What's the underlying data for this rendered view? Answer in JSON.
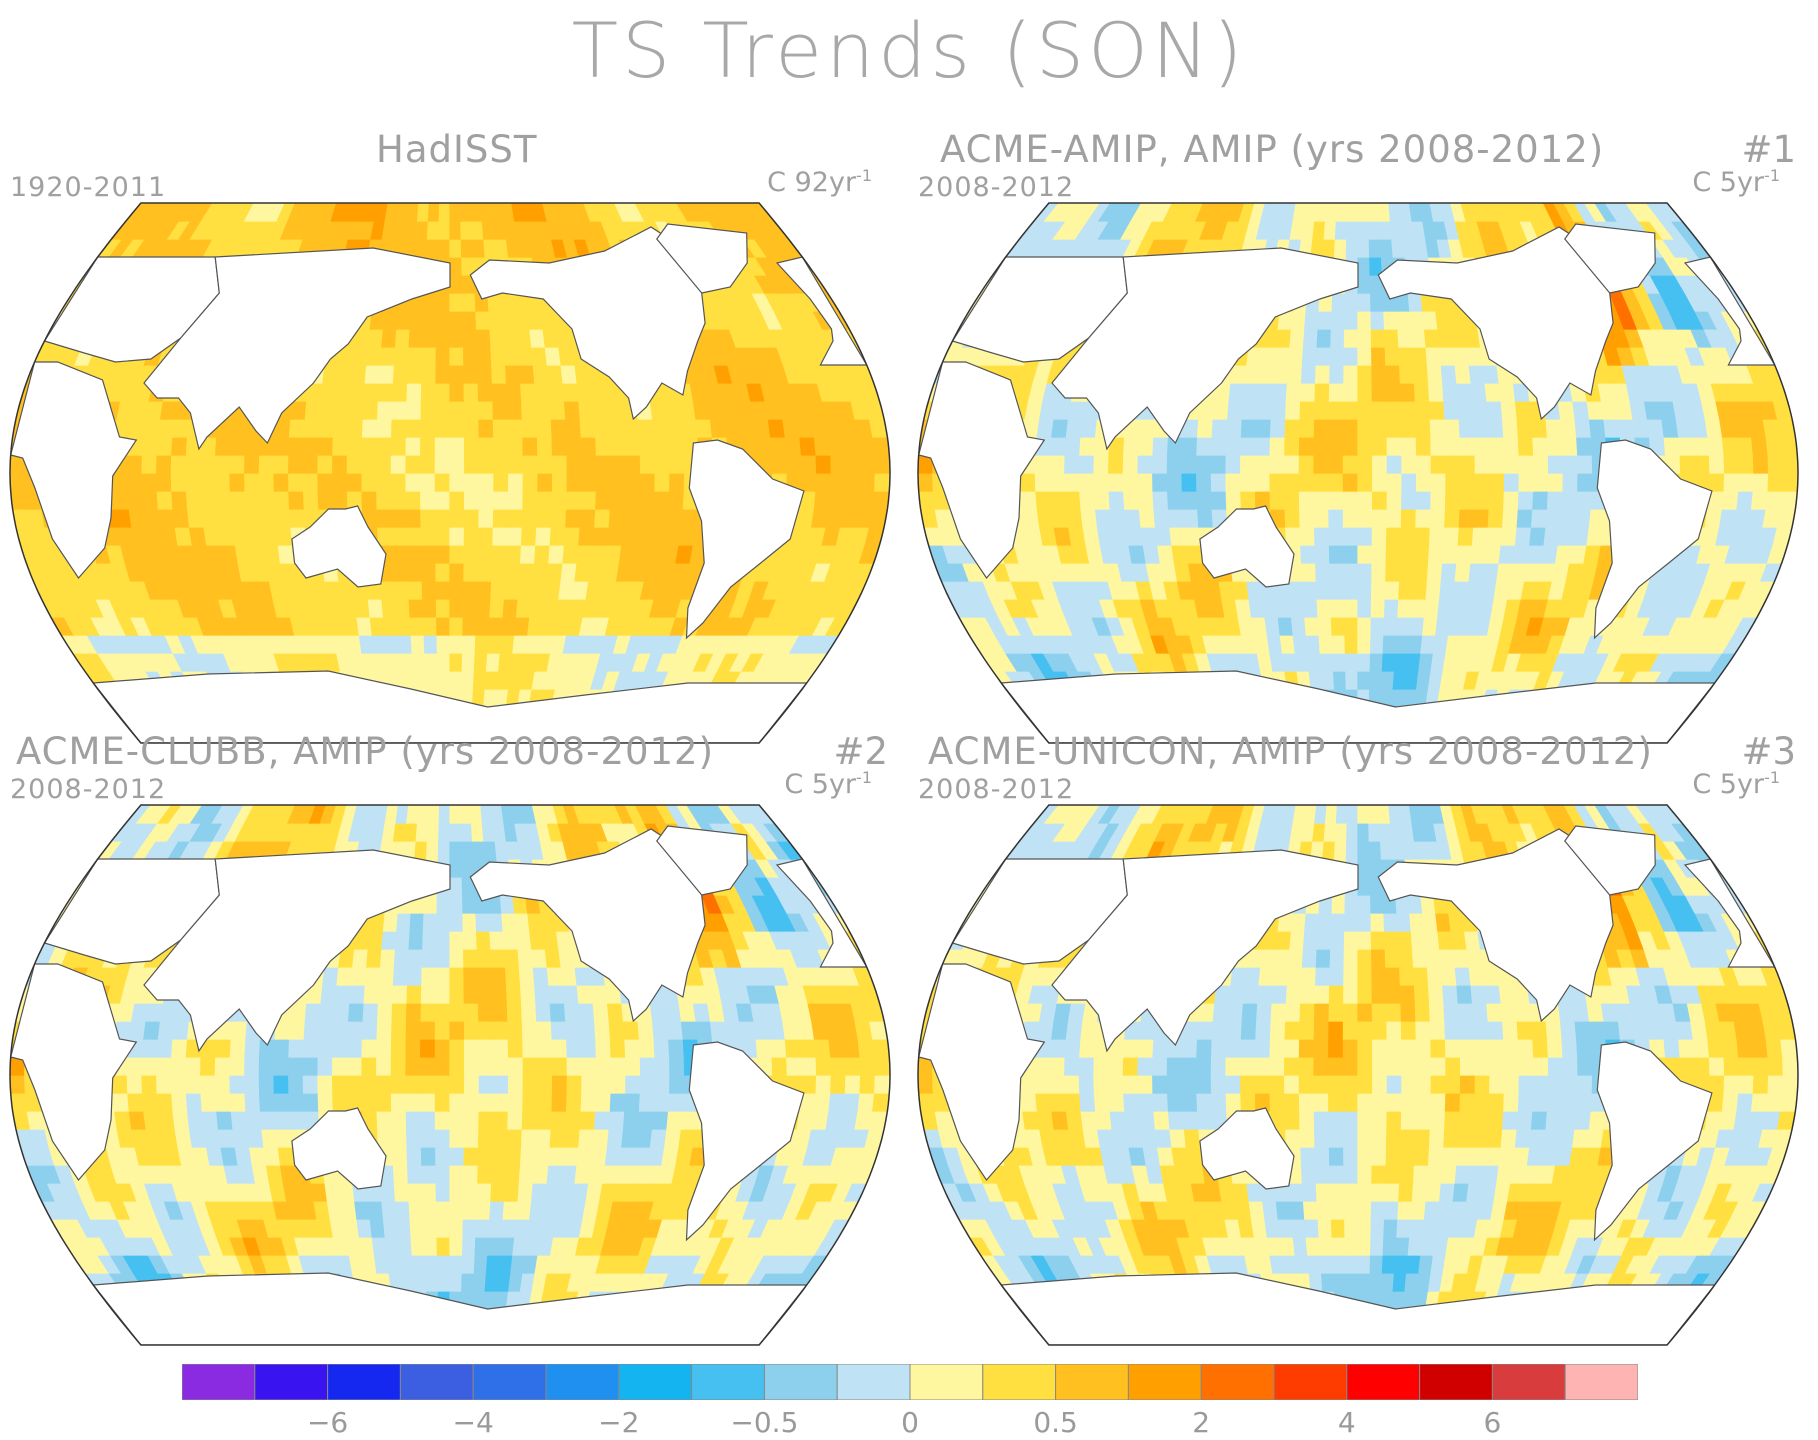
{
  "title": "TS Trends (SON)",
  "chart_data": {
    "type": "heatmap",
    "title": "TS Trends (SON)",
    "variable": "TS",
    "season": "SON",
    "panels": [
      {
        "id": "hadisst",
        "title": "HadISST",
        "period": "1920-2011",
        "units": "C 92yr",
        "units_exp": "-1",
        "number": "",
        "scheme": "warm"
      },
      {
        "id": "amip1",
        "title": "ACME-AMIP, AMIP (yrs 2008-2012)",
        "period": "2008-2012",
        "units": "C 5yr",
        "units_exp": "-1",
        "number": "#1",
        "scheme": "mixed"
      },
      {
        "id": "clubb2",
        "title": "ACME-CLUBB, AMIP (yrs 2008-2012)",
        "period": "2008-2012",
        "units": "C 5yr",
        "units_exp": "-1",
        "number": "#2",
        "scheme": "mixed"
      },
      {
        "id": "unicon3",
        "title": "ACME-UNICON, AMIP (yrs 2008-2012)",
        "period": "2008-2012",
        "units": "C 5yr",
        "units_exp": "-1",
        "number": "#3",
        "scheme": "mixed"
      }
    ],
    "colorbar": {
      "colors": [
        "#8a2be2",
        "#3a14f0",
        "#1428f0",
        "#3c5ee0",
        "#2f6fe8",
        "#2090f0",
        "#14b4f0",
        "#46c0f0",
        "#8cd0ee",
        "#bfe3f5",
        "#fff7a0",
        "#ffe040",
        "#ffc020",
        "#ffa000",
        "#ff7000",
        "#ff3c00",
        "#ff0000",
        "#d00000",
        "#d83c3c",
        "#ffb4b4"
      ],
      "tick_labels": [
        "−6",
        "−4",
        "−2",
        "−0.5",
        "0",
        "0.5",
        "2",
        "4",
        "6"
      ],
      "tick_boundaries": [
        2,
        4,
        6,
        8,
        10,
        12,
        14,
        16,
        18
      ]
    }
  }
}
